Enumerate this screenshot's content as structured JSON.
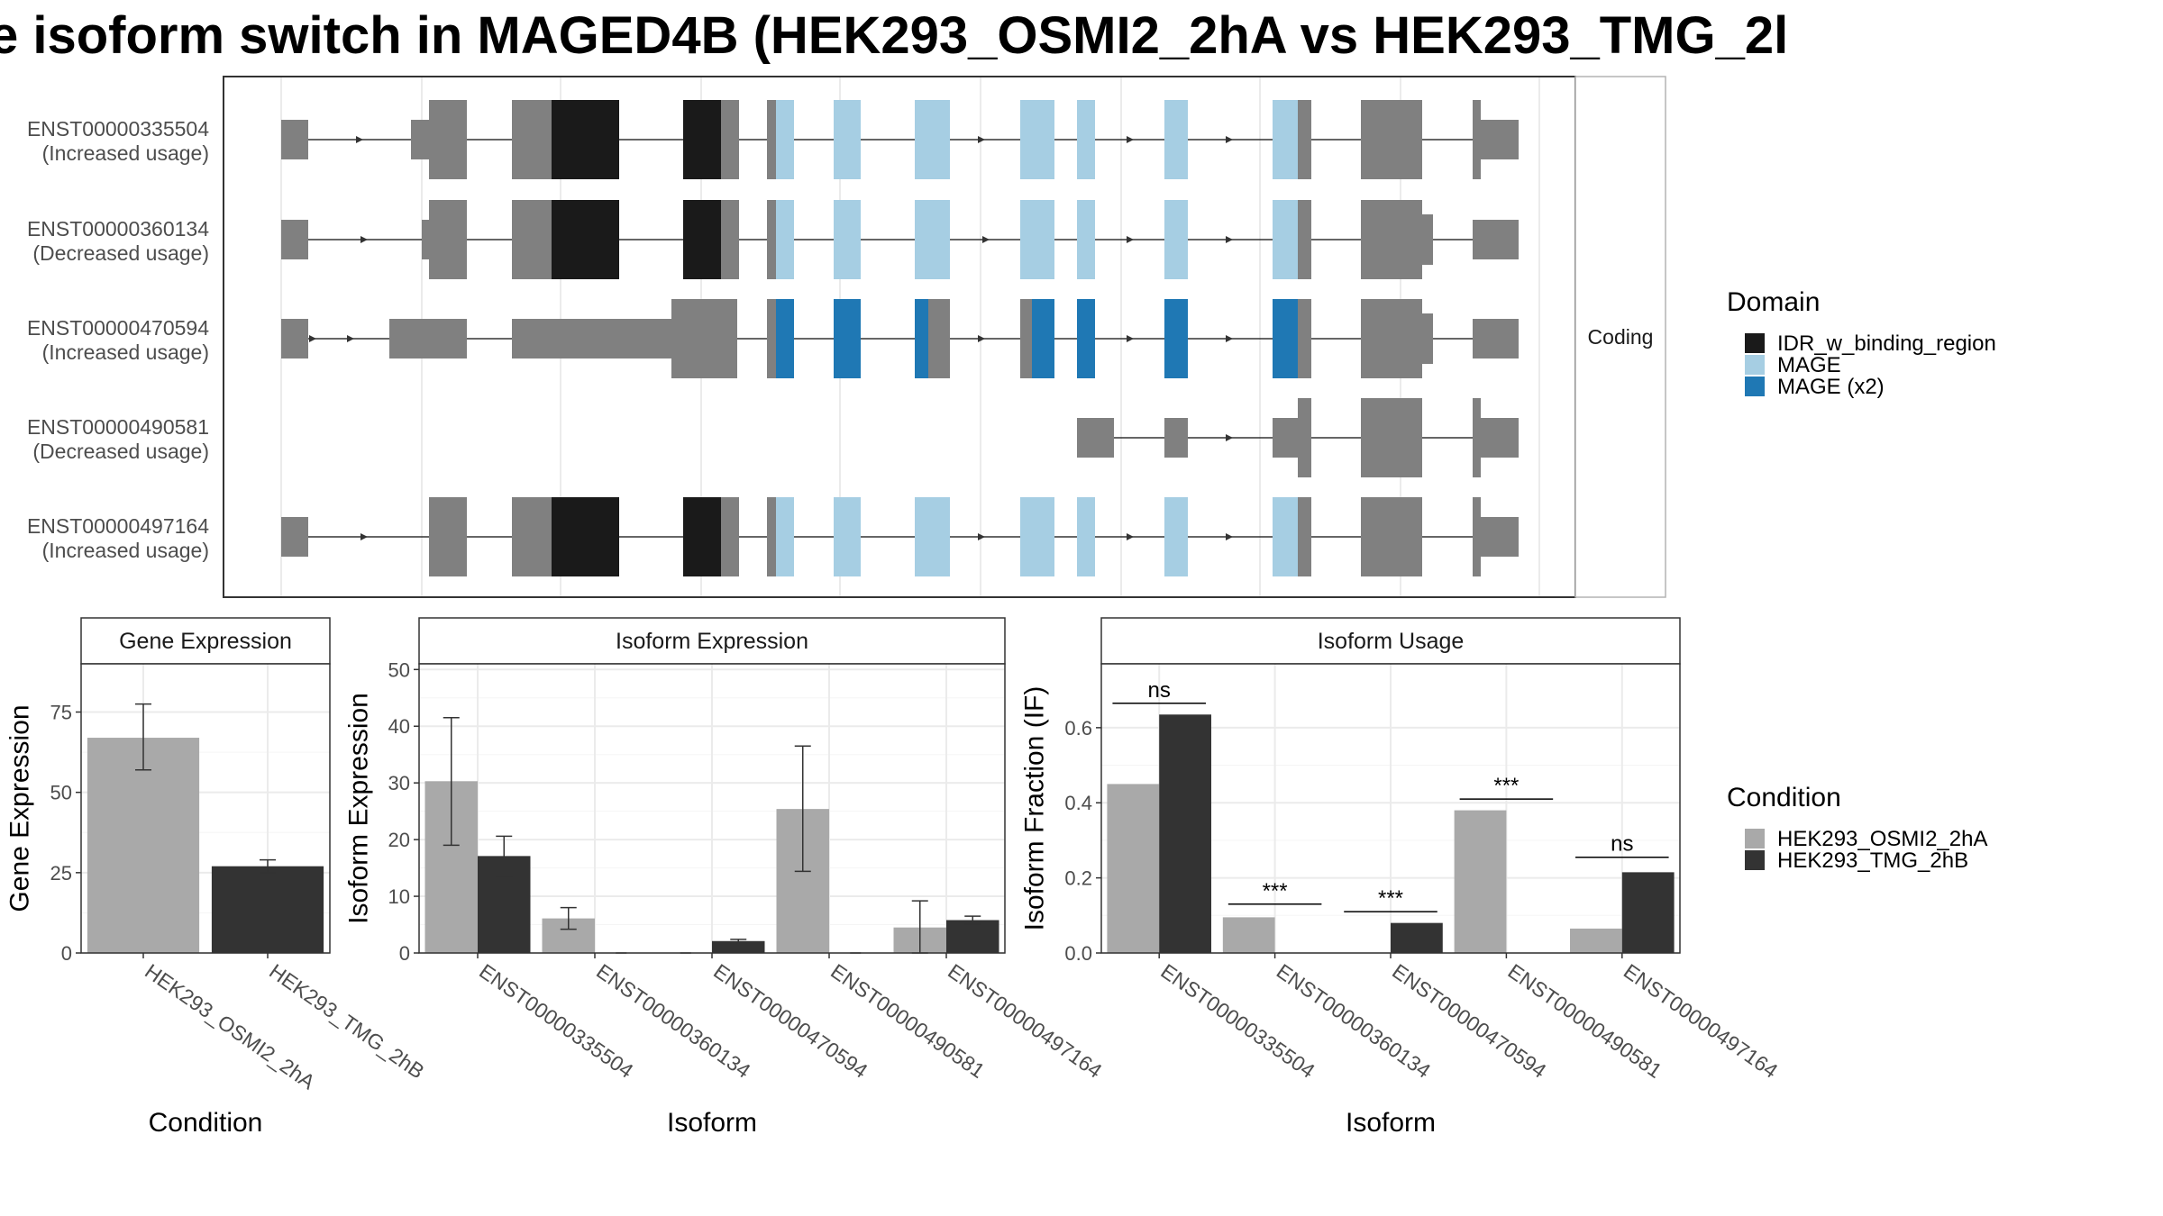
{
  "title": "e isoform switch in MAGED4B (HEK293_OSMI2_2hA vs HEK293_TMG_2l",
  "colors": {
    "gray_exon": "#808080",
    "idr": "#1a1a1a",
    "mage": "#a6cee3",
    "mage_x2": "#1f78b4",
    "cond_a": "#a9a9a9",
    "cond_b": "#333333"
  },
  "structure": {
    "strip_label": "Coding",
    "transcripts": [
      {
        "id": "ENST00000335504",
        "note": "(Increased usage)"
      },
      {
        "id": "ENST00000360134",
        "note": "(Decreased usage)"
      },
      {
        "id": "ENST00000470594",
        "note": "(Increased usage)"
      },
      {
        "id": "ENST00000490581",
        "note": "(Decreased usage)"
      },
      {
        "id": "ENST00000497164",
        "note": "(Increased usage)"
      }
    ],
    "domain_legend": {
      "title": "Domain",
      "items": [
        {
          "label": "IDR_w_binding_region",
          "color": "#1a1a1a"
        },
        {
          "label": "MAGE",
          "color": "#a6cee3"
        },
        {
          "label": "MAGE (x2)",
          "color": "#1f78b4"
        }
      ]
    }
  },
  "condition_legend": {
    "title": "Condition",
    "items": [
      {
        "label": "HEK293_OSMI2_2hA",
        "color": "#a9a9a9"
      },
      {
        "label": "HEK293_TMG_2hB",
        "color": "#333333"
      }
    ]
  },
  "chart_data": [
    {
      "type": "bar",
      "title": "Gene Expression",
      "xlabel": "Condition",
      "ylabel": "Gene Expression",
      "ylim": [
        0,
        90
      ],
      "yticks": [
        0,
        25,
        50,
        75
      ],
      "categories": [
        "HEK293_OSMI2_2hA",
        "HEK293_TMG_2hB"
      ],
      "values": [
        67,
        27
      ],
      "errors": [
        [
          57,
          77.5
        ],
        [
          25,
          29
        ]
      ],
      "colors": [
        "#a9a9a9",
        "#333333"
      ]
    },
    {
      "type": "bar",
      "title": "Isoform Expression",
      "xlabel": "Isoform",
      "ylabel": "Isoform Expression",
      "ylim": [
        0,
        51
      ],
      "yticks": [
        0,
        10,
        20,
        30,
        40,
        50
      ],
      "categories": [
        "ENST00000335504",
        "ENST00000360134",
        "ENST00000470594",
        "ENST00000490581",
        "ENST00000497164"
      ],
      "series": [
        {
          "name": "HEK293_OSMI2_2hA",
          "values": [
            30.3,
            6.1,
            0,
            25.4,
            4.5
          ],
          "errors": [
            [
              19,
              41.5
            ],
            [
              4.2,
              8
            ],
            [
              0,
              0
            ],
            [
              14.4,
              36.5
            ],
            [
              0,
              9.2
            ]
          ]
        },
        {
          "name": "HEK293_TMG_2hB",
          "values": [
            17.1,
            0,
            2.1,
            0,
            5.8
          ],
          "errors": [
            [
              13.5,
              20.6
            ],
            [
              0,
              0
            ],
            [
              1.7,
              2.4
            ],
            [
              0,
              0
            ],
            [
              5.1,
              6.5
            ]
          ]
        }
      ]
    },
    {
      "type": "bar",
      "title": "Isoform Usage",
      "xlabel": "Isoform",
      "ylabel": "Isoform Fraction (IF)",
      "ylim": [
        0,
        0.77
      ],
      "yticks": [
        0.0,
        0.2,
        0.4,
        0.6
      ],
      "ytick_labels": [
        "0.0",
        "0.2",
        "0.4",
        "0.6"
      ],
      "categories": [
        "ENST00000335504",
        "ENST00000360134",
        "ENST00000470594",
        "ENST00000490581",
        "ENST00000497164"
      ],
      "series": [
        {
          "name": "HEK293_OSMI2_2hA",
          "values": [
            0.45,
            0.095,
            0.0,
            0.38,
            0.065
          ]
        },
        {
          "name": "HEK293_TMG_2hB",
          "values": [
            0.635,
            0.0,
            0.08,
            0.0,
            0.215
          ]
        }
      ],
      "significance": [
        "ns",
        "***",
        "***",
        "***",
        "ns"
      ],
      "sig_level": [
        0.665,
        0.13,
        0.11,
        0.41,
        0.255
      ]
    }
  ]
}
